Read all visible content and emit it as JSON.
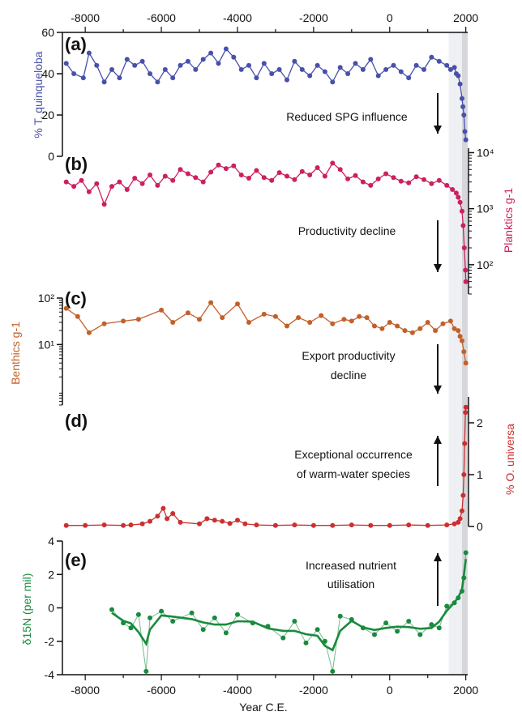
{
  "chart_data": {
    "type": "multi-panel-line",
    "xlabel": "Year C.E.",
    "xlim": [
      -8600,
      2050
    ],
    "x_ticks": [
      -8000,
      -6000,
      -4000,
      -2000,
      0,
      2000
    ],
    "x_tick_labels": [
      "-8000",
      "-6000",
      "-4000",
      "-2000",
      "0",
      "2000"
    ],
    "shaded_bands": [
      {
        "from": 1550,
        "to": 1900,
        "color": "#eef0f3"
      },
      {
        "from": 1900,
        "to": 2050,
        "color": "#d5d7da"
      }
    ],
    "annotations": [
      {
        "text": "Reduced SPG influence",
        "arrow": "down"
      },
      {
        "text": "Productivity decline",
        "arrow": "down"
      },
      {
        "text": "Export productivity",
        "arrow": "down"
      },
      {
        "text": "decline"
      },
      {
        "text": "Exceptional occurrence",
        "arrow": "up"
      },
      {
        "text": "of warm-water species"
      },
      {
        "text": "Increased nutrient",
        "arrow": "up"
      },
      {
        "text": "utilisation"
      }
    ],
    "panels": [
      {
        "label": "(a)",
        "ylabel": "% T. quinqueloba",
        "axis_side": "left",
        "yscale": "linear",
        "ylim": [
          0,
          60
        ],
        "yticks": [
          0,
          20,
          40,
          60
        ],
        "ytick_labels": [
          "0",
          "20",
          "40",
          "60"
        ],
        "color": "#4750ab",
        "x": [
          -8500,
          -8300,
          -8050,
          -7900,
          -7700,
          -7500,
          -7300,
          -7100,
          -6900,
          -6700,
          -6500,
          -6300,
          -6100,
          -5900,
          -5700,
          -5500,
          -5300,
          -5100,
          -4900,
          -4700,
          -4500,
          -4300,
          -4100,
          -3900,
          -3700,
          -3500,
          -3300,
          -3100,
          -2900,
          -2700,
          -2500,
          -2300,
          -2100,
          -1900,
          -1700,
          -1500,
          -1300,
          -1100,
          -900,
          -700,
          -500,
          -300,
          -100,
          100,
          300,
          500,
          700,
          900,
          1100,
          1300,
          1500,
          1600,
          1700,
          1750,
          1800,
          1850,
          1900,
          1925,
          1950,
          1975,
          2000
        ],
        "y": [
          45,
          40,
          38,
          50,
          44,
          36,
          42,
          38,
          47,
          44,
          46,
          40,
          36,
          42,
          38,
          44,
          46,
          42,
          47,
          50,
          45,
          52,
          48,
          42,
          44,
          38,
          45,
          40,
          42,
          37,
          46,
          42,
          39,
          44,
          41,
          36,
          43,
          40,
          45,
          42,
          47,
          39,
          42,
          44,
          41,
          38,
          44,
          42,
          48,
          46,
          44,
          42,
          43,
          40,
          39,
          35,
          28,
          24,
          20,
          12,
          8
        ]
      },
      {
        "label": "(b)",
        "ylabel": "Planktics g-1",
        "axis_side": "right",
        "yscale": "log",
        "ylim": [
          30,
          12000
        ],
        "yticks": [
          100,
          1000,
          10000
        ],
        "ytick_labels": [
          "10²",
          "10³",
          "10⁴"
        ],
        "color": "#cc2060",
        "x": [
          -8500,
          -8300,
          -8100,
          -7900,
          -7700,
          -7500,
          -7300,
          -7100,
          -6900,
          -6700,
          -6500,
          -6300,
          -6100,
          -5900,
          -5700,
          -5500,
          -5300,
          -5100,
          -4900,
          -4700,
          -4500,
          -4300,
          -4100,
          -3900,
          -3700,
          -3500,
          -3300,
          -3100,
          -2900,
          -2700,
          -2500,
          -2300,
          -2100,
          -1900,
          -1700,
          -1500,
          -1300,
          -1100,
          -900,
          -700,
          -500,
          -300,
          -100,
          100,
          300,
          500,
          700,
          900,
          1100,
          1300,
          1500,
          1650,
          1750,
          1800,
          1850,
          1900,
          1930,
          1960,
          1990,
          2000
        ],
        "y": [
          3000,
          2500,
          3200,
          2000,
          2800,
          1200,
          2500,
          3000,
          2200,
          3500,
          2800,
          4000,
          2600,
          3800,
          3200,
          5000,
          4200,
          3600,
          3000,
          4500,
          6000,
          5200,
          5800,
          4000,
          3500,
          4800,
          3600,
          3200,
          4400,
          3800,
          3300,
          4600,
          4000,
          5400,
          3800,
          6500,
          5000,
          3400,
          3900,
          3000,
          2600,
          3400,
          4200,
          3600,
          3100,
          2900,
          3700,
          3300,
          2800,
          3200,
          2600,
          2200,
          1900,
          1600,
          1300,
          900,
          500,
          200,
          80,
          50
        ]
      },
      {
        "label": "(c)",
        "ylabel": "Benthics g-1",
        "axis_side": "left",
        "yscale": "log",
        "ylim": [
          0.5,
          100
        ],
        "yticks": [
          10,
          100
        ],
        "ytick_labels": [
          "10¹",
          "10²"
        ],
        "color": "#c2602a",
        "x": [
          -8500,
          -8200,
          -7900,
          -7500,
          -7000,
          -6600,
          -6000,
          -5700,
          -5300,
          -5000,
          -4700,
          -4400,
          -4000,
          -3700,
          -3300,
          -3000,
          -2700,
          -2400,
          -2100,
          -1800,
          -1500,
          -1200,
          -1000,
          -800,
          -600,
          -400,
          -200,
          0,
          200,
          400,
          600,
          800,
          1000,
          1200,
          1400,
          1600,
          1700,
          1800,
          1850,
          1900,
          1950,
          2000
        ],
        "y": [
          60,
          40,
          18,
          28,
          32,
          35,
          55,
          30,
          48,
          35,
          80,
          38,
          75,
          30,
          45,
          40,
          25,
          38,
          30,
          42,
          28,
          35,
          32,
          40,
          38,
          25,
          22,
          30,
          25,
          20,
          18,
          22,
          30,
          20,
          28,
          32,
          22,
          20,
          15,
          12,
          7,
          4
        ]
      },
      {
        "label": "(d)",
        "ylabel": "% O. universa",
        "axis_side": "right",
        "yscale": "linear",
        "ylim": [
          0,
          2.5
        ],
        "yticks": [
          0,
          1,
          2
        ],
        "ytick_labels": [
          "0",
          "1",
          "2"
        ],
        "color": "#cc2f2f",
        "x": [
          -8500,
          -8000,
          -7500,
          -7000,
          -6800,
          -6500,
          -6300,
          -6100,
          -5950,
          -5850,
          -5700,
          -5500,
          -5000,
          -4800,
          -4600,
          -4400,
          -4200,
          -4000,
          -3800,
          -3500,
          -3000,
          -2500,
          -2000,
          -1500,
          -1000,
          -500,
          0,
          500,
          1000,
          1500,
          1700,
          1800,
          1850,
          1900,
          1930,
          1950,
          1970,
          1990,
          2000
        ],
        "y": [
          0.02,
          0.02,
          0.03,
          0.02,
          0.03,
          0.05,
          0.1,
          0.2,
          0.35,
          0.15,
          0.25,
          0.08,
          0.05,
          0.15,
          0.12,
          0.1,
          0.06,
          0.12,
          0.05,
          0.03,
          0.02,
          0.03,
          0.02,
          0.02,
          0.03,
          0.02,
          0.02,
          0.03,
          0.02,
          0.03,
          0.05,
          0.08,
          0.15,
          0.3,
          0.6,
          1.0,
          1.6,
          2.2,
          2.3
        ]
      },
      {
        "label": "(e)",
        "ylabel": "δ15N (per mil)",
        "axis_side": "left",
        "yscale": "linear",
        "ylim": [
          -4,
          4
        ],
        "yticks": [
          -4,
          -2,
          0,
          2,
          4
        ],
        "ytick_labels": [
          "-4",
          "-2",
          "0",
          "2",
          "4"
        ],
        "color": "#198a3e",
        "x": [
          -7300,
          -7000,
          -6800,
          -6600,
          -6400,
          -6300,
          -6000,
          -5700,
          -5200,
          -4900,
          -4600,
          -4300,
          -4000,
          -3600,
          -3200,
          -2800,
          -2500,
          -2200,
          -1900,
          -1700,
          -1500,
          -1300,
          -1000,
          -700,
          -400,
          -100,
          200,
          500,
          800,
          1100,
          1300,
          1500,
          1700,
          1800,
          1900,
          1950,
          2000
        ],
        "y": [
          -0.1,
          -0.9,
          -1.2,
          -0.4,
          -3.8,
          -0.6,
          -0.2,
          -0.8,
          -0.3,
          -1.3,
          -0.6,
          -1.5,
          -0.4,
          -0.9,
          -1.1,
          -1.8,
          -0.8,
          -2.1,
          -1.3,
          -2.0,
          -3.8,
          -0.5,
          -0.7,
          -1.2,
          -1.6,
          -0.9,
          -1.4,
          -0.8,
          -1.6,
          -1.0,
          -1.2,
          0.1,
          0.3,
          0.6,
          1.0,
          1.8,
          3.3
        ]
      }
    ]
  }
}
